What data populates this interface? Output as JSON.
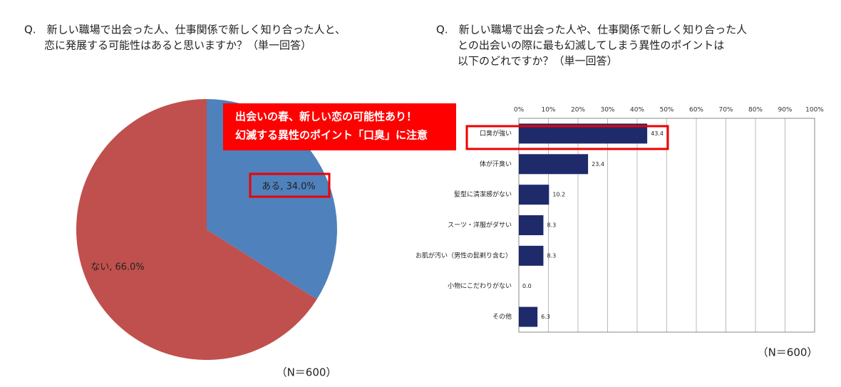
{
  "chart_data": [
    {
      "type": "pie",
      "title": [
        "Q.　新しい職場で出会った人、仕事関係で新しく知り合った人と、",
        "恋に発展する可能性はあると思いますか？（単一回答）"
      ],
      "categories": [
        "ある",
        "ない"
      ],
      "values": [
        34.0,
        66.0
      ],
      "value_labels": [
        "ある, 34.0%",
        "ない, 66.0%"
      ],
      "colors": [
        "#4f81bd",
        "#c0504d"
      ],
      "note": "（N＝600）"
    },
    {
      "type": "bar",
      "orientation": "horizontal",
      "title": [
        "Q.　新しい職場で出会った人や、仕事関係で新しく知り合った人",
        "との出会いの際に最も幻滅してしまう異性のポイントは",
        "以下のどれですか？（単一回答）"
      ],
      "categories": [
        "口臭が強い",
        "体が汗臭い",
        "髪型に清潔感がない",
        "スーツ・洋服がダサい",
        "お肌が汚い（男性の髭剃り含む）",
        "小物にこだわりがない",
        "その他"
      ],
      "values": [
        43.4,
        23.4,
        10.2,
        8.3,
        8.3,
        0.0,
        6.3
      ],
      "value_labels": [
        "43.4",
        "23.4",
        "10.2",
        "8.3",
        "8.3",
        "0.0",
        "6.3"
      ],
      "color": "#1f2a6b",
      "xlim": [
        0,
        100
      ],
      "xticks": [
        {
          "value": 0,
          "label": "0%"
        },
        {
          "value": 10,
          "label": "10%"
        },
        {
          "value": 20,
          "label": "20%"
        },
        {
          "value": 30,
          "label": "30%"
        },
        {
          "value": 40,
          "label": "40%"
        },
        {
          "value": 50,
          "label": "50%"
        },
        {
          "value": 60,
          "label": "60%"
        },
        {
          "value": 70,
          "label": "70%"
        },
        {
          "value": 80,
          "label": "80%"
        },
        {
          "value": 90,
          "label": "90%"
        },
        {
          "value": 100,
          "label": "100%"
        }
      ],
      "grid": true,
      "note": "（N＝600）"
    }
  ],
  "banner": [
    "出会いの春、新しい恋の可能性あり！",
    "幻滅する異性のポイント「口臭」に注意"
  ]
}
